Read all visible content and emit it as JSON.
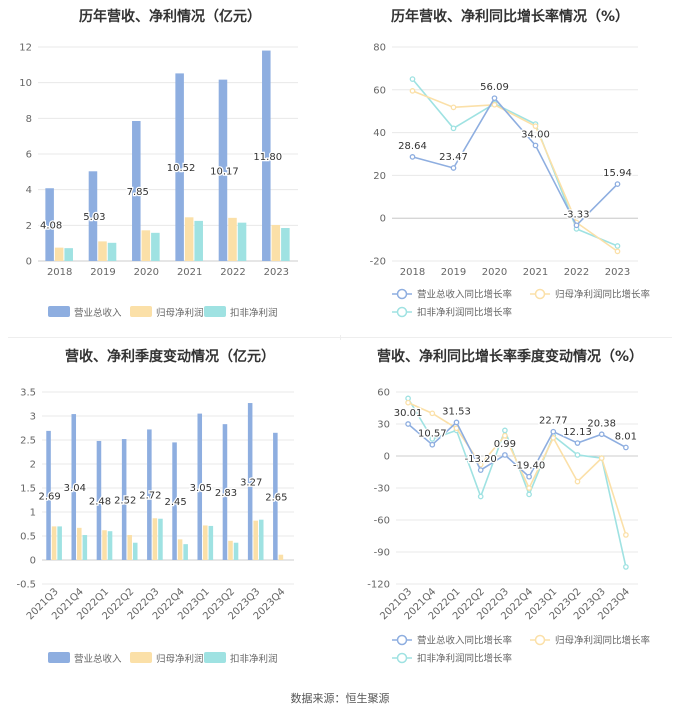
{
  "source": "数据来源：恒生聚源",
  "colors": {
    "revenue": "#8eaee0",
    "parent": "#fbe0a8",
    "deducted": "#9fe2e2",
    "grid": "#e8e8e8",
    "axis": "#cccccc",
    "text": "#666666"
  },
  "chart_data": [
    {
      "type": "bar",
      "title": "历年营收、净利情况（亿元）",
      "categories": [
        "2018",
        "2019",
        "2020",
        "2021",
        "2022",
        "2023"
      ],
      "ylim": [
        0,
        12
      ],
      "yticks": [
        0,
        2,
        4,
        6,
        8,
        10,
        12
      ],
      "series": [
        {
          "name": "营业总收入",
          "color": "#8eaee0",
          "values": [
            4.08,
            5.03,
            7.85,
            10.52,
            10.17,
            11.8
          ],
          "labels": [
            "4.08",
            "5.03",
            "7.85",
            "10.52",
            "10.17",
            "11.80"
          ]
        },
        {
          "name": "归母净利润",
          "color": "#fbe0a8",
          "values": [
            0.75,
            1.1,
            1.72,
            2.45,
            2.42,
            2.02
          ]
        },
        {
          "name": "扣非净利润",
          "color": "#9fe2e2",
          "values": [
            0.72,
            1.02,
            1.58,
            2.25,
            2.15,
            1.85
          ]
        }
      ]
    },
    {
      "type": "line",
      "title": "历年营收、净利同比增长率情况（%）",
      "categories": [
        "2018",
        "2019",
        "2020",
        "2021",
        "2022",
        "2023"
      ],
      "ylim": [
        -20,
        80
      ],
      "yticks": [
        -20,
        0,
        20,
        40,
        60,
        80
      ],
      "series": [
        {
          "name": "营业总收入同比增长率",
          "color": "#8eaee0",
          "values": [
            28.64,
            23.47,
            56.09,
            34.0,
            -3.33,
            15.94
          ],
          "labels": [
            "28.64",
            "23.47",
            "56.09",
            "34.00",
            "-3.33",
            "15.94"
          ]
        },
        {
          "name": "归母净利润同比增长率",
          "color": "#fbe0a8",
          "values": [
            59.5,
            51.8,
            53.0,
            43.0,
            -2.0,
            -15.5
          ]
        },
        {
          "name": "扣非净利润同比增长率",
          "color": "#9fe2e2",
          "values": [
            65.0,
            42.0,
            53.5,
            44.0,
            -5.0,
            -13.0
          ]
        }
      ]
    },
    {
      "type": "bar",
      "title": "营收、净利季度变动情况（亿元）",
      "categories": [
        "2021Q3",
        "2021Q4",
        "2022Q1",
        "2022Q2",
        "2022Q3",
        "2022Q4",
        "2023Q1",
        "2023Q2",
        "2023Q3",
        "2023Q4"
      ],
      "ylim": [
        -0.5,
        3.5
      ],
      "yticks": [
        -0.5,
        0,
        0.5,
        1,
        1.5,
        2,
        2.5,
        3,
        3.5
      ],
      "series": [
        {
          "name": "营业总收入",
          "color": "#8eaee0",
          "values": [
            2.69,
            3.04,
            2.48,
            2.52,
            2.72,
            2.45,
            3.05,
            2.83,
            3.27,
            2.65
          ],
          "labels": [
            "2.69",
            "3.04",
            "2.48",
            "2.52",
            "2.72",
            "2.45",
            "3.05",
            "2.83",
            "3.27",
            "2.65"
          ]
        },
        {
          "name": "归母净利润",
          "color": "#fbe0a8",
          "values": [
            0.7,
            0.67,
            0.62,
            0.52,
            0.87,
            0.43,
            0.72,
            0.4,
            0.82,
            0.11
          ]
        },
        {
          "name": "扣非净利润",
          "color": "#9fe2e2",
          "values": [
            0.7,
            0.52,
            0.6,
            0.36,
            0.86,
            0.33,
            0.71,
            0.36,
            0.84,
            0.0
          ]
        }
      ]
    },
    {
      "type": "line",
      "title": "营收、净利同比增长率季度变动情况（%）",
      "categories": [
        "2021Q3",
        "2021Q4",
        "2022Q1",
        "2022Q2",
        "2022Q3",
        "2022Q4",
        "2023Q1",
        "2023Q2",
        "2023Q3",
        "2023Q4"
      ],
      "ylim": [
        -120,
        60
      ],
      "yticks": [
        -120,
        -90,
        -60,
        -30,
        0,
        30,
        60
      ],
      "series": [
        {
          "name": "营业总收入同比增长率",
          "color": "#8eaee0",
          "values": [
            30.01,
            10.57,
            31.53,
            -13.2,
            0.99,
            -19.4,
            22.77,
            12.13,
            20.38,
            8.01
          ],
          "labels": [
            "30.01",
            "10.57",
            "31.53",
            "-13.20",
            "0.99",
            "-19.40",
            "22.77",
            "12.13",
            "20.38",
            "8.01"
          ]
        },
        {
          "name": "归母净利润同比增长率",
          "color": "#fbe0a8",
          "values": [
            50.0,
            40.0,
            26.0,
            -8.0,
            19.0,
            -30.0,
            17.0,
            -24.0,
            -2.0,
            -74.0
          ]
        },
        {
          "name": "扣非净利润同比增长率",
          "color": "#9fe2e2",
          "values": [
            54.0,
            16.0,
            24.0,
            -38.0,
            24.0,
            -36.0,
            19.0,
            1.0,
            -2.0,
            -104.0
          ]
        }
      ]
    }
  ]
}
